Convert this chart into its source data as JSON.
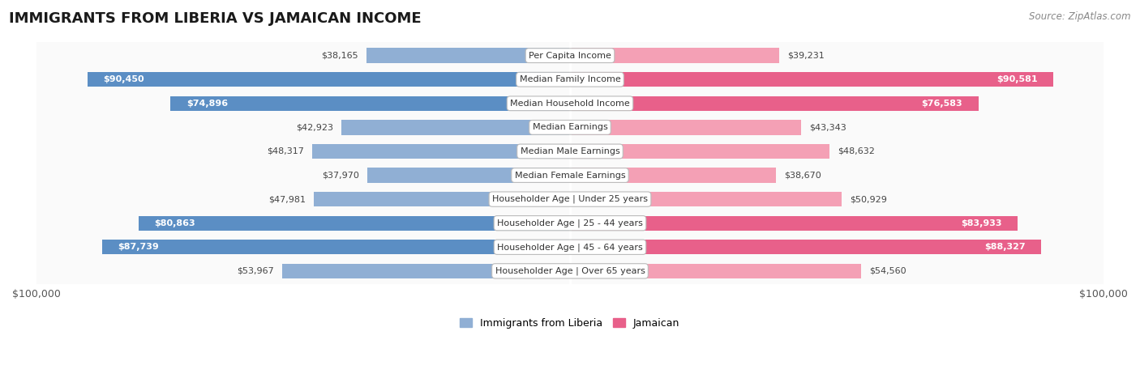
{
  "title": "IMMIGRANTS FROM LIBERIA VS JAMAICAN INCOME",
  "source": "Source: ZipAtlas.com",
  "categories": [
    "Per Capita Income",
    "Median Family Income",
    "Median Household Income",
    "Median Earnings",
    "Median Male Earnings",
    "Median Female Earnings",
    "Householder Age | Under 25 years",
    "Householder Age | 25 - 44 years",
    "Householder Age | 45 - 64 years",
    "Householder Age | Over 65 years"
  ],
  "liberia_values": [
    38165,
    90450,
    74896,
    42923,
    48317,
    37970,
    47981,
    80863,
    87739,
    53967
  ],
  "jamaican_values": [
    39231,
    90581,
    76583,
    43343,
    48632,
    38670,
    50929,
    83933,
    88327,
    54560
  ],
  "liberia_labels": [
    "$38,165",
    "$90,450",
    "$74,896",
    "$42,923",
    "$48,317",
    "$37,970",
    "$47,981",
    "$80,863",
    "$87,739",
    "$53,967"
  ],
  "jamaican_labels": [
    "$39,231",
    "$90,581",
    "$76,583",
    "$43,343",
    "$48,632",
    "$38,670",
    "$50,929",
    "$83,933",
    "$88,327",
    "$54,560"
  ],
  "liberia_color": "#90afd4",
  "jamaican_color": "#f4a0b5",
  "liberia_color_dark": "#5b8ec4",
  "jamaican_color_dark": "#e8608a",
  "max_value": 100000,
  "bar_height": 0.62,
  "background_color": "#ffffff",
  "row_bg_even": "#efefef",
  "row_bg_odd": "#fafafa",
  "label_inside_threshold": 60000,
  "label_fontsize": 8.0,
  "cat_fontsize": 8.0,
  "title_fontsize": 13,
  "legend_fontsize": 9,
  "axis_fontsize": 9
}
